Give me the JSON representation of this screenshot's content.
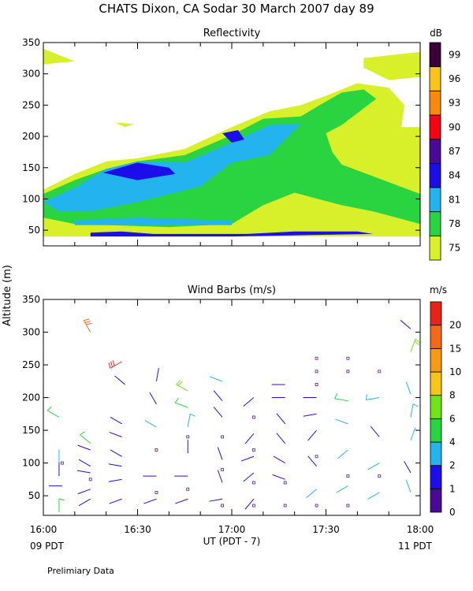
{
  "figure": {
    "title": "CHATS Dixon, CA   Sodar   30 March 2007   day  89",
    "shared_ylabel": "Altitude (m)",
    "xlabel": "UT  (PDT - 7)",
    "x_left_note": "09 PDT",
    "x_right_note": "11 PDT",
    "footer": "Prelimiary Data"
  },
  "colors": {
    "reflectivity_scale": [
      "#d7f02a",
      "#2ad441",
      "#23b3ef",
      "#1c0ee8",
      "#4b0a95",
      "#f70414",
      "#f88a10",
      "#f8c41c",
      "#3b0038"
    ],
    "wind_scale": [
      "#4b0a95",
      "#1c0ee8",
      "#23b3ef",
      "#2ad441",
      "#6fe418",
      "#f8c41c",
      "#f89a14",
      "#f56a1a",
      "#e8231a"
    ],
    "square_marker": "#6b2b9b"
  },
  "chart_data": [
    {
      "type": "heatmap",
      "title": "Reflectivity",
      "xlabel": "UT  (PDT - 7)",
      "ylabel": "Altitude (m)",
      "x_ticks": [
        "16:00",
        "16:30",
        "17:00",
        "17:30",
        "18:00"
      ],
      "x_range_min": [
        0,
        120
      ],
      "y_ticks": [
        50,
        100,
        150,
        200,
        250,
        300,
        350
      ],
      "ylim": [
        25,
        350
      ],
      "colorbar": {
        "unit": "dB",
        "levels": [
          75,
          78,
          81,
          84,
          87,
          90,
          93,
          96,
          99
        ]
      },
      "contours": [
        {
          "level": 75,
          "region": [
            [
              0,
              115
            ],
            [
              10,
              140
            ],
            [
              20,
              160
            ],
            [
              30,
              165
            ],
            [
              45,
              180
            ],
            [
              60,
              215
            ],
            [
              72,
              240
            ],
            [
              82,
              250
            ],
            [
              90,
              265
            ],
            [
              100,
              285
            ],
            [
              110,
              278
            ],
            [
              115,
              250
            ],
            [
              114,
              215
            ],
            [
              120,
              215
            ],
            [
              120,
              40
            ],
            [
              0,
              40
            ]
          ]
        },
        {
          "level": 75,
          "region": [
            [
              0,
              340
            ],
            [
              10,
              320
            ],
            [
              0,
              315
            ]
          ]
        },
        {
          "level": 75,
          "region": [
            [
              102,
              325
            ],
            [
              120,
              335
            ],
            [
              120,
              295
            ],
            [
              110,
              290
            ],
            [
              102,
              310
            ]
          ]
        },
        {
          "level": 75,
          "region": [
            [
              23,
              222
            ],
            [
              29,
              220
            ],
            [
              26,
              215
            ]
          ]
        },
        {
          "level": 78,
          "region": [
            [
              0,
              108
            ],
            [
              10,
              130
            ],
            [
              20,
              148
            ],
            [
              30,
              160
            ],
            [
              45,
              170
            ],
            [
              60,
              202
            ],
            [
              70,
              228
            ],
            [
              82,
              232
            ],
            [
              88,
              250
            ],
            [
              95,
              270
            ],
            [
              102,
              275
            ],
            [
              106,
              260
            ],
            [
              95,
              218
            ],
            [
              90,
              205
            ],
            [
              92,
              175
            ],
            [
              95,
              155
            ],
            [
              120,
              108
            ],
            [
              120,
              60
            ],
            [
              105,
              80
            ],
            [
              95,
              90
            ],
            [
              80,
              110
            ],
            [
              70,
              90
            ],
            [
              60,
              60
            ],
            [
              40,
              55
            ],
            [
              10,
              60
            ],
            [
              0,
              70
            ]
          ]
        },
        {
          "level": 81,
          "region": [
            [
              0,
              95
            ],
            [
              10,
              118
            ],
            [
              20,
              148
            ],
            [
              30,
              160
            ],
            [
              45,
              158
            ],
            [
              60,
              190
            ],
            [
              72,
              218
            ],
            [
              82,
              220
            ],
            [
              78,
              200
            ],
            [
              72,
              170
            ],
            [
              60,
              158
            ],
            [
              50,
              120
            ],
            [
              30,
              95
            ],
            [
              15,
              80
            ],
            [
              5,
              80
            ]
          ]
        },
        {
          "level": 81,
          "region": [
            [
              10,
              58
            ],
            [
              60,
              58
            ],
            [
              60,
              65
            ],
            [
              30,
              70
            ],
            [
              10,
              66
            ]
          ]
        },
        {
          "level": 84,
          "region": [
            [
              19,
              142
            ],
            [
              30,
              158
            ],
            [
              40,
              150
            ],
            [
              42,
              140
            ],
            [
              30,
              130
            ]
          ]
        },
        {
          "level": 84,
          "region": [
            [
              57,
              205
            ],
            [
              62,
              210
            ],
            [
              64,
              195
            ],
            [
              60,
              190
            ]
          ]
        },
        {
          "level": 84,
          "region": [
            [
              15,
              46
            ],
            [
              25,
              48
            ],
            [
              35,
              44
            ],
            [
              65,
              44
            ],
            [
              80,
              48
            ],
            [
              100,
              48
            ],
            [
              105,
              44
            ],
            [
              60,
              40
            ],
            [
              15,
              40
            ]
          ]
        }
      ]
    },
    {
      "type": "scatter",
      "title": "Wind Barbs (m/s)",
      "xlabel": "UT  (PDT - 7)",
      "ylabel": "Altitude (m)",
      "x_ticks": [
        "16:00",
        "16:30",
        "17:00",
        "17:30",
        "18:00"
      ],
      "x_range_min": [
        0,
        120
      ],
      "y_ticks": [
        50,
        100,
        150,
        200,
        250,
        300,
        350
      ],
      "ylim": [
        20,
        350
      ],
      "colorbar": {
        "unit": "m/s",
        "levels": [
          0,
          1,
          2,
          4,
          6,
          8,
          10,
          15,
          20
        ]
      },
      "barbs": [
        {
          "t": 2,
          "alt": 200,
          "speed": 15,
          "dir": 270
        },
        {
          "t": 5,
          "alt": 170,
          "speed": 5,
          "dir": 300
        },
        {
          "t": 5,
          "alt": 100,
          "speed": 2,
          "dir": 0
        },
        {
          "t": 5,
          "alt": 80,
          "speed": 1,
          "dir": 0
        },
        {
          "t": 6,
          "alt": 65,
          "speed": 1,
          "dir": 270
        },
        {
          "t": 5,
          "alt": 25,
          "speed": 4,
          "dir": 0
        },
        {
          "t": 15,
          "alt": 300,
          "speed": 15,
          "dir": 330
        },
        {
          "t": 15,
          "alt": 130,
          "speed": 4,
          "dir": 310
        },
        {
          "t": 15,
          "alt": 120,
          "speed": 1,
          "dir": 290
        },
        {
          "t": 15,
          "alt": 95,
          "speed": 1,
          "dir": 300
        },
        {
          "t": 15,
          "alt": 85,
          "speed": 1,
          "dir": 280
        },
        {
          "t": 15,
          "alt": 60,
          "speed": 1,
          "dir": 250
        },
        {
          "t": 15,
          "alt": 45,
          "speed": 1,
          "dir": 240
        },
        {
          "t": 25,
          "alt": 255,
          "speed": 20,
          "dir": 240
        },
        {
          "t": 25,
          "alt": 160,
          "speed": 1,
          "dir": 300
        },
        {
          "t": 25,
          "alt": 140,
          "speed": 1,
          "dir": 290
        },
        {
          "t": 25,
          "alt": 110,
          "speed": 1,
          "dir": 300
        },
        {
          "t": 25,
          "alt": 95,
          "speed": 1,
          "dir": 280
        },
        {
          "t": 25,
          "alt": 75,
          "speed": 1,
          "dir": 260
        },
        {
          "t": 25,
          "alt": 45,
          "speed": 1,
          "dir": 250
        },
        {
          "t": 26,
          "alt": 220,
          "speed": 1,
          "dir": 310
        },
        {
          "t": 36,
          "alt": 225,
          "speed": 1,
          "dir": 10
        },
        {
          "t": 36,
          "alt": 190,
          "speed": 1,
          "dir": 330
        },
        {
          "t": 36,
          "alt": 155,
          "speed": 2,
          "dir": 300
        },
        {
          "t": 36,
          "alt": 80,
          "speed": 1,
          "dir": 270
        },
        {
          "t": 36,
          "alt": 45,
          "speed": 1,
          "dir": 250
        },
        {
          "t": 46,
          "alt": 210,
          "speed": 6,
          "dir": 300
        },
        {
          "t": 46,
          "alt": 185,
          "speed": 4,
          "dir": 290
        },
        {
          "t": 46,
          "alt": 155,
          "speed": 3,
          "dir": 10
        },
        {
          "t": 46,
          "alt": 115,
          "speed": 1,
          "dir": 0
        },
        {
          "t": 46,
          "alt": 80,
          "speed": 1,
          "dir": 270
        },
        {
          "t": 46,
          "alt": 45,
          "speed": 1,
          "dir": 250
        },
        {
          "t": 57,
          "alt": 225,
          "speed": 2,
          "dir": 290
        },
        {
          "t": 57,
          "alt": 195,
          "speed": 1,
          "dir": 320
        },
        {
          "t": 57,
          "alt": 170,
          "speed": 1,
          "dir": 320
        },
        {
          "t": 57,
          "alt": 105,
          "speed": 1,
          "dir": 340
        },
        {
          "t": 57,
          "alt": 70,
          "speed": 1,
          "dir": 340
        },
        {
          "t": 57,
          "alt": 45,
          "speed": 1,
          "dir": 260
        },
        {
          "t": 67,
          "alt": 200,
          "speed": 1,
          "dir": 230
        },
        {
          "t": 67,
          "alt": 145,
          "speed": 1,
          "dir": 220
        },
        {
          "t": 67,
          "alt": 110,
          "speed": 1,
          "dir": 250
        },
        {
          "t": 67,
          "alt": 85,
          "speed": 1,
          "dir": 230
        },
        {
          "t": 67,
          "alt": 45,
          "speed": 1,
          "dir": 220
        },
        {
          "t": 77,
          "alt": 220,
          "speed": 1,
          "dir": 270
        },
        {
          "t": 77,
          "alt": 200,
          "speed": 1,
          "dir": 270
        },
        {
          "t": 77,
          "alt": 160,
          "speed": 1,
          "dir": 320
        },
        {
          "t": 77,
          "alt": 130,
          "speed": 1,
          "dir": 320
        },
        {
          "t": 77,
          "alt": 100,
          "speed": 1,
          "dir": 300
        },
        {
          "t": 77,
          "alt": 75,
          "speed": 1,
          "dir": 290
        },
        {
          "t": 87,
          "alt": 200,
          "speed": 1,
          "dir": 270
        },
        {
          "t": 87,
          "alt": 175,
          "speed": 1,
          "dir": 260
        },
        {
          "t": 87,
          "alt": 150,
          "speed": 1,
          "dir": 220
        },
        {
          "t": 87,
          "alt": 95,
          "speed": 1,
          "dir": 320
        },
        {
          "t": 87,
          "alt": 60,
          "speed": 2,
          "dir": 230
        },
        {
          "t": 97,
          "alt": 195,
          "speed": 4,
          "dir": 280
        },
        {
          "t": 97,
          "alt": 160,
          "speed": 2,
          "dir": 290
        },
        {
          "t": 97,
          "alt": 120,
          "speed": 2,
          "dir": 230
        },
        {
          "t": 97,
          "alt": 65,
          "speed": 2,
          "dir": 240
        },
        {
          "t": 107,
          "alt": 200,
          "speed": 3,
          "dir": 260
        },
        {
          "t": 107,
          "alt": 140,
          "speed": 1,
          "dir": 320
        },
        {
          "t": 107,
          "alt": 100,
          "speed": 2,
          "dir": 240
        },
        {
          "t": 107,
          "alt": 55,
          "speed": 2,
          "dir": 240
        },
        {
          "t": 117,
          "alt": 305,
          "speed": 1,
          "dir": 310
        },
        {
          "t": 117,
          "alt": 270,
          "speed": 6,
          "dir": 20
        },
        {
          "t": 117,
          "alt": 205,
          "speed": 2,
          "dir": 340
        },
        {
          "t": 117,
          "alt": 170,
          "speed": 3,
          "dir": 10
        },
        {
          "t": 117,
          "alt": 135,
          "speed": 2,
          "dir": 20
        },
        {
          "t": 117,
          "alt": 85,
          "speed": 1,
          "dir": 330
        },
        {
          "t": 117,
          "alt": 55,
          "speed": 2,
          "dir": 340
        }
      ],
      "calm": [
        {
          "t": 6,
          "alt": 100
        },
        {
          "t": 15,
          "alt": 75
        },
        {
          "t": 36,
          "alt": 120
        },
        {
          "t": 36,
          "alt": 55
        },
        {
          "t": 46,
          "alt": 140
        },
        {
          "t": 46,
          "alt": 60
        },
        {
          "t": 57,
          "alt": 140
        },
        {
          "t": 57,
          "alt": 90
        },
        {
          "t": 57,
          "alt": 35
        },
        {
          "t": 67,
          "alt": 170
        },
        {
          "t": 67,
          "alt": 120
        },
        {
          "t": 67,
          "alt": 70
        },
        {
          "t": 67,
          "alt": 35
        },
        {
          "t": 77,
          "alt": 70
        },
        {
          "t": 77,
          "alt": 35
        },
        {
          "t": 87,
          "alt": 260
        },
        {
          "t": 87,
          "alt": 240
        },
        {
          "t": 87,
          "alt": 220
        },
        {
          "t": 87,
          "alt": 110
        },
        {
          "t": 87,
          "alt": 35
        },
        {
          "t": 97,
          "alt": 260
        },
        {
          "t": 97,
          "alt": 240
        },
        {
          "t": 97,
          "alt": 80
        },
        {
          "t": 97,
          "alt": 35
        },
        {
          "t": 107,
          "alt": 240
        },
        {
          "t": 107,
          "alt": 80
        }
      ]
    }
  ]
}
